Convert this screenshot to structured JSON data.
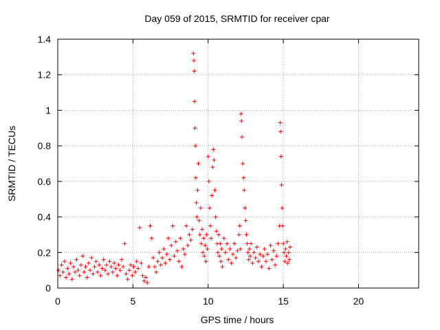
{
  "chart_data": {
    "type": "scatter",
    "title": "Day 059 of 2015, SRMTID for receiver cpar",
    "xlabel": "GPS time / hours",
    "ylabel": "SRMTID / TECUs",
    "xlim": [
      0,
      24
    ],
    "ylim": [
      0,
      1.4
    ],
    "x_ticks": [
      0,
      5,
      10,
      15,
      20
    ],
    "x_tick_labels": [
      "0",
      "5",
      "10",
      "15",
      "20"
    ],
    "y_ticks": [
      0,
      0.2,
      0.4,
      0.6,
      0.8,
      1,
      1.2,
      1.4
    ],
    "y_tick_labels": [
      "0",
      "0.2",
      "0.4",
      "0.6",
      "0.8",
      "1",
      "1.2",
      "1.4"
    ],
    "grid": true,
    "marker": "+",
    "series_color": "#ff0000",
    "points": [
      [
        0.05,
        0.1
      ],
      [
        0.15,
        0.07
      ],
      [
        0.25,
        0.13
      ],
      [
        0.35,
        0.09
      ],
      [
        0.45,
        0.15
      ],
      [
        0.55,
        0.06
      ],
      [
        0.65,
        0.11
      ],
      [
        0.75,
        0.08
      ],
      [
        0.85,
        0.14
      ],
      [
        0.95,
        0.05
      ],
      [
        1.05,
        0.12
      ],
      [
        1.15,
        0.09
      ],
      [
        1.25,
        0.16
      ],
      [
        1.35,
        0.1
      ],
      [
        1.45,
        0.07
      ],
      [
        1.55,
        0.13
      ],
      [
        1.65,
        0.18
      ],
      [
        1.75,
        0.09
      ],
      [
        1.85,
        0.12
      ],
      [
        1.95,
        0.06
      ],
      [
        2.05,
        0.14
      ],
      [
        2.15,
        0.1
      ],
      [
        2.25,
        0.17
      ],
      [
        2.35,
        0.08
      ],
      [
        2.45,
        0.12
      ],
      [
        2.55,
        0.15
      ],
      [
        2.65,
        0.09
      ],
      [
        2.75,
        0.13
      ],
      [
        2.85,
        0.07
      ],
      [
        2.95,
        0.11
      ],
      [
        3.05,
        0.16
      ],
      [
        3.15,
        0.1
      ],
      [
        3.25,
        0.13
      ],
      [
        3.35,
        0.08
      ],
      [
        3.45,
        0.15
      ],
      [
        3.55,
        0.12
      ],
      [
        3.65,
        0.09
      ],
      [
        3.75,
        0.14
      ],
      [
        3.85,
        0.11
      ],
      [
        3.95,
        0.07
      ],
      [
        4.05,
        0.13
      ],
      [
        4.15,
        0.1
      ],
      [
        4.25,
        0.16
      ],
      [
        4.35,
        0.12
      ],
      [
        4.45,
        0.25
      ],
      [
        4.55,
        0.08
      ],
      [
        4.65,
        0.05
      ],
      [
        4.75,
        0.1
      ],
      [
        4.85,
        0.13
      ],
      [
        4.95,
        0.07
      ],
      [
        5.05,
        0.12
      ],
      [
        5.15,
        0.09
      ],
      [
        5.25,
        0.15
      ],
      [
        5.35,
        0.11
      ],
      [
        5.45,
        0.34
      ],
      [
        5.55,
        0.14
      ],
      [
        5.65,
        0.07
      ],
      [
        5.75,
        0.04
      ],
      [
        5.85,
        0.06
      ],
      [
        5.95,
        0.03
      ],
      [
        6.05,
        0.12
      ],
      [
        6.15,
        0.35
      ],
      [
        6.25,
        0.28
      ],
      [
        6.35,
        0.17
      ],
      [
        6.45,
        0.12
      ],
      [
        6.55,
        0.09
      ],
      [
        6.65,
        0.15
      ],
      [
        6.75,
        0.2
      ],
      [
        6.85,
        0.13
      ],
      [
        6.95,
        0.17
      ],
      [
        7.05,
        0.22
      ],
      [
        7.15,
        0.14
      ],
      [
        7.25,
        0.19
      ],
      [
        7.35,
        0.28
      ],
      [
        7.45,
        0.16
      ],
      [
        7.55,
        0.24
      ],
      [
        7.65,
        0.35
      ],
      [
        7.75,
        0.18
      ],
      [
        7.85,
        0.26
      ],
      [
        7.95,
        0.21
      ],
      [
        8.05,
        0.15
      ],
      [
        8.15,
        0.28
      ],
      [
        8.25,
        0.12
      ],
      [
        8.35,
        0.22
      ],
      [
        8.45,
        0.19
      ],
      [
        8.55,
        0.35
      ],
      [
        8.65,
        0.24
      ],
      [
        8.75,
        0.3
      ],
      [
        8.85,
        0.27
      ],
      [
        8.95,
        0.33
      ],
      [
        9.02,
        1.32
      ],
      [
        9.05,
        1.28
      ],
      [
        9.08,
        1.22
      ],
      [
        9.1,
        1.05
      ],
      [
        9.12,
        0.9
      ],
      [
        9.15,
        0.8
      ],
      [
        9.18,
        0.62
      ],
      [
        9.22,
        0.48
      ],
      [
        9.25,
        0.4
      ],
      [
        9.3,
        0.55
      ],
      [
        9.35,
        0.7
      ],
      [
        9.4,
        0.38
      ],
      [
        9.45,
        0.3
      ],
      [
        9.5,
        0.45
      ],
      [
        9.55,
        0.25
      ],
      [
        9.6,
        0.33
      ],
      [
        9.65,
        0.2
      ],
      [
        9.7,
        0.28
      ],
      [
        9.75,
        0.18
      ],
      [
        9.8,
        0.24
      ],
      [
        9.85,
        0.15
      ],
      [
        9.9,
        0.3
      ],
      [
        9.95,
        0.22
      ],
      [
        10.0,
        0.74
      ],
      [
        10.05,
        0.6
      ],
      [
        10.1,
        0.45
      ],
      [
        10.15,
        0.35
      ],
      [
        10.2,
        0.28
      ],
      [
        10.25,
        0.52
      ],
      [
        10.3,
        0.68
      ],
      [
        10.35,
        0.78
      ],
      [
        10.4,
        0.72
      ],
      [
        10.45,
        0.55
      ],
      [
        10.5,
        0.4
      ],
      [
        10.55,
        0.32
      ],
      [
        10.6,
        0.25
      ],
      [
        10.65,
        0.2
      ],
      [
        10.7,
        0.3
      ],
      [
        10.75,
        0.18
      ],
      [
        10.8,
        0.25
      ],
      [
        10.85,
        0.15
      ],
      [
        10.9,
        0.22
      ],
      [
        10.95,
        0.12
      ],
      [
        11.05,
        0.28
      ],
      [
        11.15,
        0.2
      ],
      [
        11.25,
        0.25
      ],
      [
        11.35,
        0.16
      ],
      [
        11.45,
        0.22
      ],
      [
        11.55,
        0.14
      ],
      [
        11.65,
        0.19
      ],
      [
        11.75,
        0.25
      ],
      [
        11.85,
        0.17
      ],
      [
        11.95,
        0.21
      ],
      [
        12.05,
        0.3
      ],
      [
        12.1,
        0.35
      ],
      [
        12.15,
        0.22
      ],
      [
        12.2,
        0.98
      ],
      [
        12.22,
        0.94
      ],
      [
        12.25,
        0.85
      ],
      [
        12.3,
        0.7
      ],
      [
        12.35,
        0.62
      ],
      [
        12.4,
        0.55
      ],
      [
        12.45,
        0.45
      ],
      [
        12.5,
        0.38
      ],
      [
        12.55,
        0.3
      ],
      [
        12.6,
        0.25
      ],
      [
        12.65,
        0.2
      ],
      [
        12.7,
        0.16
      ],
      [
        12.75,
        0.22
      ],
      [
        12.8,
        0.18
      ],
      [
        12.85,
        0.25
      ],
      [
        12.95,
        0.14
      ],
      [
        13.05,
        0.2
      ],
      [
        13.15,
        0.17
      ],
      [
        13.25,
        0.23
      ],
      [
        13.35,
        0.15
      ],
      [
        13.45,
        0.19
      ],
      [
        13.55,
        0.12
      ],
      [
        13.65,
        0.18
      ],
      [
        13.75,
        0.22
      ],
      [
        13.85,
        0.15
      ],
      [
        13.95,
        0.19
      ],
      [
        14.05,
        0.11
      ],
      [
        14.15,
        0.24
      ],
      [
        14.25,
        0.16
      ],
      [
        14.35,
        0.21
      ],
      [
        14.45,
        0.13
      ],
      [
        14.55,
        0.18
      ],
      [
        14.65,
        0.25
      ],
      [
        14.75,
        0.35
      ],
      [
        14.8,
        0.93
      ],
      [
        14.82,
        0.88
      ],
      [
        14.85,
        0.74
      ],
      [
        14.88,
        0.58
      ],
      [
        14.92,
        0.45
      ],
      [
        14.95,
        0.35
      ],
      [
        15.0,
        0.25
      ],
      [
        15.05,
        0.2
      ],
      [
        15.1,
        0.15
      ],
      [
        15.15,
        0.22
      ],
      [
        15.2,
        0.18
      ],
      [
        15.25,
        0.26
      ],
      [
        15.3,
        0.14
      ],
      [
        15.35,
        0.2
      ],
      [
        15.4,
        0.16
      ],
      [
        15.45,
        0.23
      ]
    ]
  }
}
